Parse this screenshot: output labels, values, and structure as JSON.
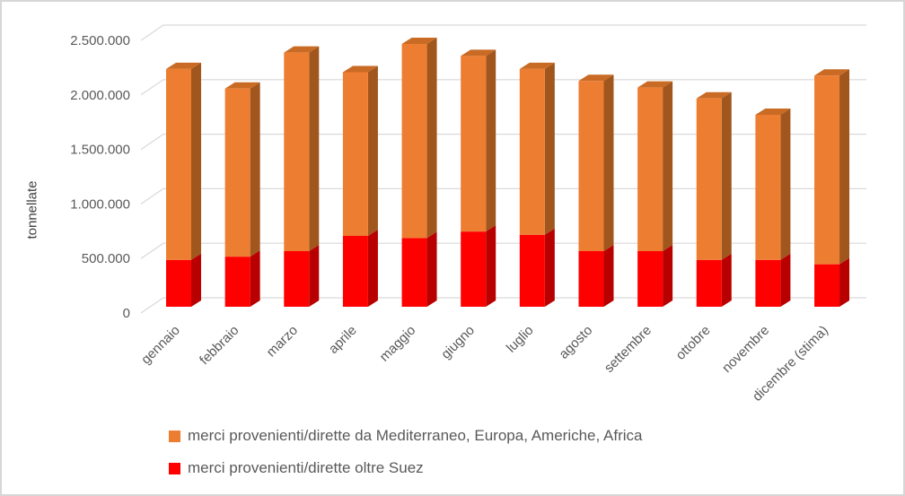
{
  "chart_data": {
    "type": "bar",
    "stacked": true,
    "style": "3d",
    "title": "",
    "ylabel": "tonnellate",
    "xlabel": "",
    "ylim": [
      0,
      2500000
    ],
    "ytick_step": 500000,
    "ytick_labels": [
      "0",
      "500.000",
      "1.000.000",
      "1.500.000",
      "2.000.000",
      "2.500.000"
    ],
    "grid": true,
    "legend_position": "bottom-left",
    "categories": [
      "gennaio",
      "febbraio",
      "marzo",
      "aprile",
      "maggio",
      "giugno",
      "luglio",
      "agosto",
      "settembre",
      "ottobre",
      "novembre",
      "dicembre (stima)"
    ],
    "series": [
      {
        "name": "merci provenienti/dirette oltre Suez",
        "color": "#FF0000",
        "side_color": "#B80000",
        "top_color": "#D40000",
        "values": [
          430000,
          460000,
          510000,
          650000,
          630000,
          690000,
          660000,
          510000,
          510000,
          430000,
          430000,
          390000
        ]
      },
      {
        "name": "merci provenienti/dirette da Mediterraneo, Europa, Americhe, Africa",
        "color": "#ED7D31",
        "side_color": "#A0561D",
        "top_color": "#C96B24",
        "values": [
          1750000,
          1540000,
          1820000,
          1500000,
          1780000,
          1610000,
          1520000,
          1560000,
          1500000,
          1480000,
          1330000,
          1730000
        ]
      }
    ],
    "totals": [
      2180000,
      2000000,
      2330000,
      2150000,
      2410000,
      2300000,
      2180000,
      2070000,
      2010000,
      1910000,
      1760000,
      2120000
    ]
  },
  "legend": {
    "items": [
      {
        "label": "merci provenienti/dirette da Mediterraneo, Europa, Americhe, Africa",
        "color": "#ED7D31"
      },
      {
        "label": "merci provenienti/dirette oltre Suez",
        "color": "#FF0000"
      }
    ]
  },
  "colors": {
    "gridline": "#D9D9D9",
    "axis_text": "#595959",
    "frame_border": "#D6D6D6"
  }
}
